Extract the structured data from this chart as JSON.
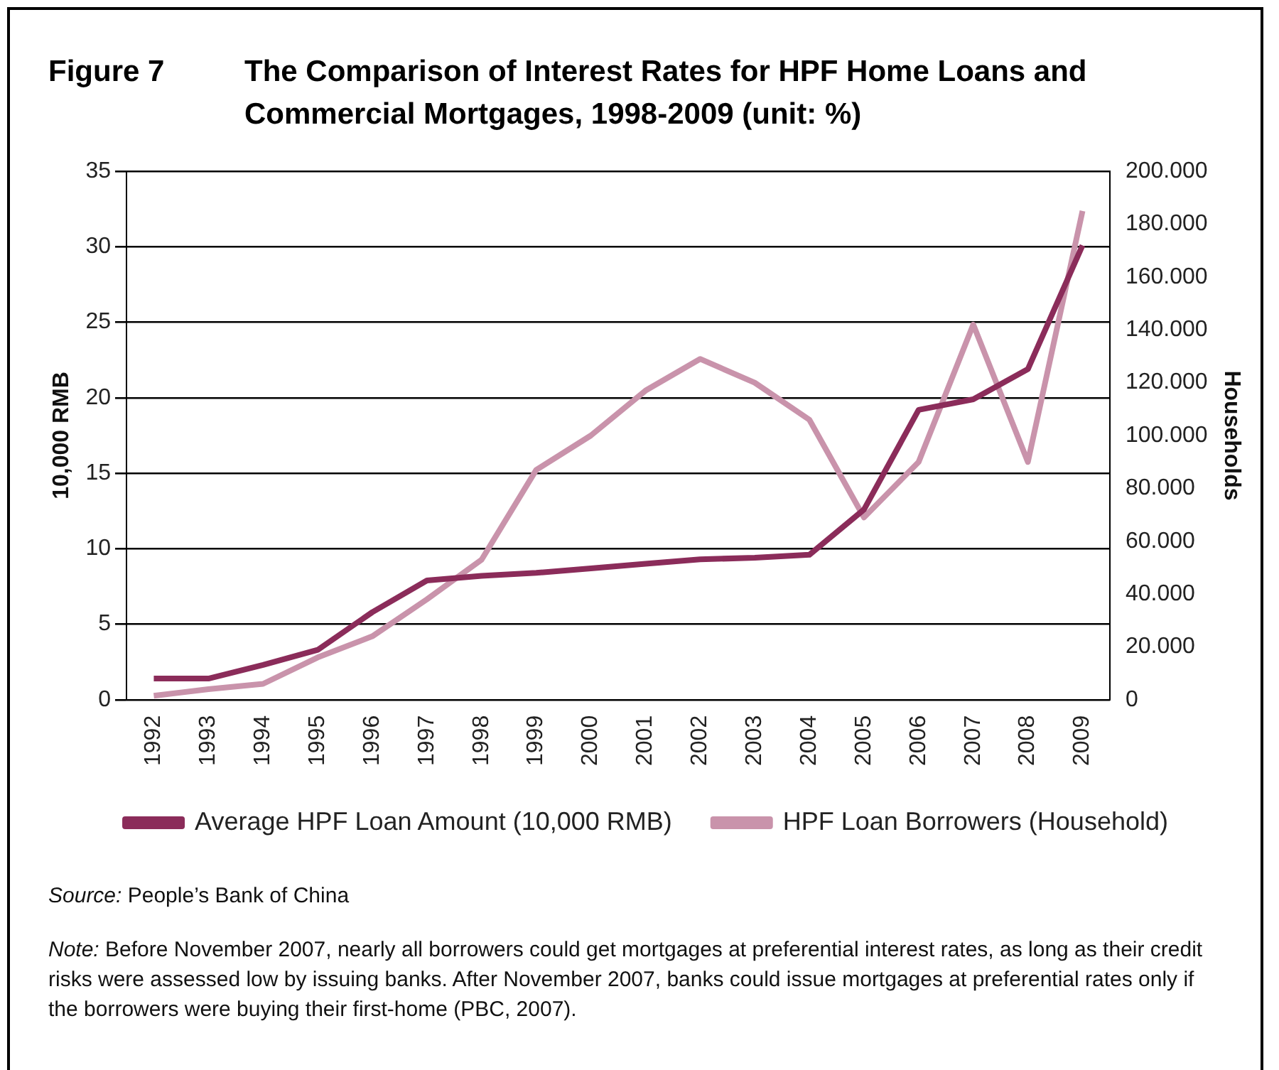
{
  "chart_data": {
    "type": "line",
    "title": "The Comparison of Interest Rates for HPF Home Loans and Commercial Mortgages, 1998-2009 (unit: %)",
    "categories": [
      "1992",
      "1993",
      "1994",
      "1995",
      "1996",
      "1997",
      "1998",
      "1999",
      "2000",
      "2001",
      "2002",
      "2003",
      "2004",
      "2005",
      "2006",
      "2007",
      "2008",
      "2009"
    ],
    "series": [
      {
        "name": "Average HPF Loan Amount (10,000 RMB)",
        "color": "#8b2c5a",
        "values": [
          1.4,
          1.4,
          2.3,
          3.3,
          5.8,
          7.9,
          8.2,
          8.4,
          8.7,
          9.0,
          9.3,
          9.4,
          9.6,
          12.6,
          19.2,
          19.9,
          21.9,
          30.1
        ]
      },
      {
        "name": "HPF Loan Borrowers (Household)",
        "color": "#c993ab",
        "axis": "y2",
        "values": [
          1500,
          4000,
          6000,
          16000,
          24000,
          38000,
          53000,
          87000,
          100000,
          117000,
          129000,
          120000,
          106000,
          69000,
          90000,
          142000,
          90000,
          185000
        ]
      }
    ],
    "ylabel": "10,000 RMB",
    "y2label": "Households",
    "ylim": [
      0,
      35
    ],
    "yticks": [
      0,
      5,
      10,
      15,
      20,
      25,
      30,
      35
    ],
    "y2lim": [
      0,
      200000
    ],
    "y2ticks": [
      {
        "value": 0,
        "label": "0"
      },
      {
        "value": 20000,
        "label": "20.000"
      },
      {
        "value": 40000,
        "label": "40.000"
      },
      {
        "value": 60000,
        "label": "60.000"
      },
      {
        "value": 80000,
        "label": "80.000"
      },
      {
        "value": 100000,
        "label": "100.000"
      },
      {
        "value": 120000,
        "label": "120.000"
      },
      {
        "value": 140000,
        "label": "140.000"
      },
      {
        "value": 160000,
        "label": "160.000"
      },
      {
        "value": 180000,
        "label": "180.000"
      },
      {
        "value": 200000,
        "label": "200.000"
      }
    ],
    "grid": "y",
    "legend": "bottom",
    "marker": "none",
    "line_style": "solid",
    "annotations": [
      "Figure 7",
      "Source: People’s Bank of China",
      "Note: Before November 2007, nearly all borrowers could get mortgages at preferential interest rates, as long as their credit risks were assessed low by issuing banks. After November 2007, banks could issue mortgages at preferential rates only if the borrowers were buying their first-home (PBC, 2007)."
    ]
  }
}
